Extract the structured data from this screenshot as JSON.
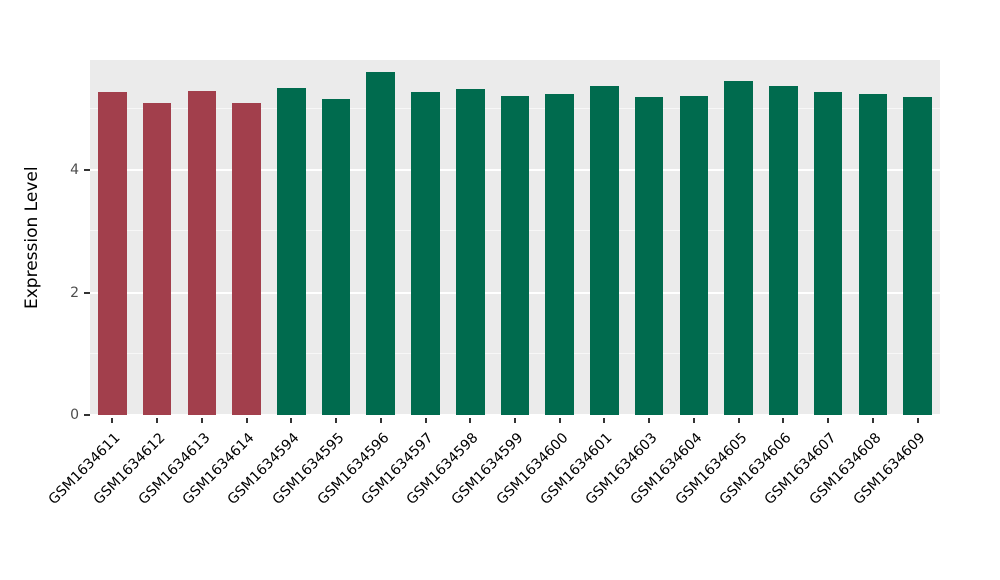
{
  "chart_data": {
    "type": "bar",
    "title": "",
    "xlabel": "",
    "ylabel": "Expression Level",
    "categories": [
      "GSM1634611",
      "GSM1634612",
      "GSM1634613",
      "GSM1634614",
      "GSM1634594",
      "GSM1634595",
      "GSM1634596",
      "GSM1634597",
      "GSM1634598",
      "GSM1634599",
      "GSM1634600",
      "GSM1634601",
      "GSM1634603",
      "GSM1634604",
      "GSM1634605",
      "GSM1634606",
      "GSM1634607",
      "GSM1634608",
      "GSM1634609"
    ],
    "values": [
      5.28,
      5.1,
      5.3,
      5.1,
      5.35,
      5.17,
      5.61,
      5.28,
      5.33,
      5.22,
      5.25,
      5.37,
      5.19,
      5.22,
      5.45,
      5.37,
      5.28,
      5.25,
      5.2
    ],
    "colors": [
      "#A23F4C",
      "#A23F4C",
      "#A23F4C",
      "#A23F4C",
      "#006B4E",
      "#006B4E",
      "#006B4E",
      "#006B4E",
      "#006B4E",
      "#006B4E",
      "#006B4E",
      "#006B4E",
      "#006B4E",
      "#006B4E",
      "#006B4E",
      "#006B4E",
      "#006B4E",
      "#006B4E",
      "#006B4E"
    ],
    "ylim": [
      0,
      5.8
    ],
    "yticks": [
      0,
      2,
      4
    ],
    "minor_gridlines": [
      1,
      3,
      5
    ],
    "grid": "on",
    "legend_position": "none",
    "plot_background": "#EBEBEB",
    "group_colors": {
      "group_1": "#A23F4C",
      "group_2": "#006B4E"
    }
  }
}
